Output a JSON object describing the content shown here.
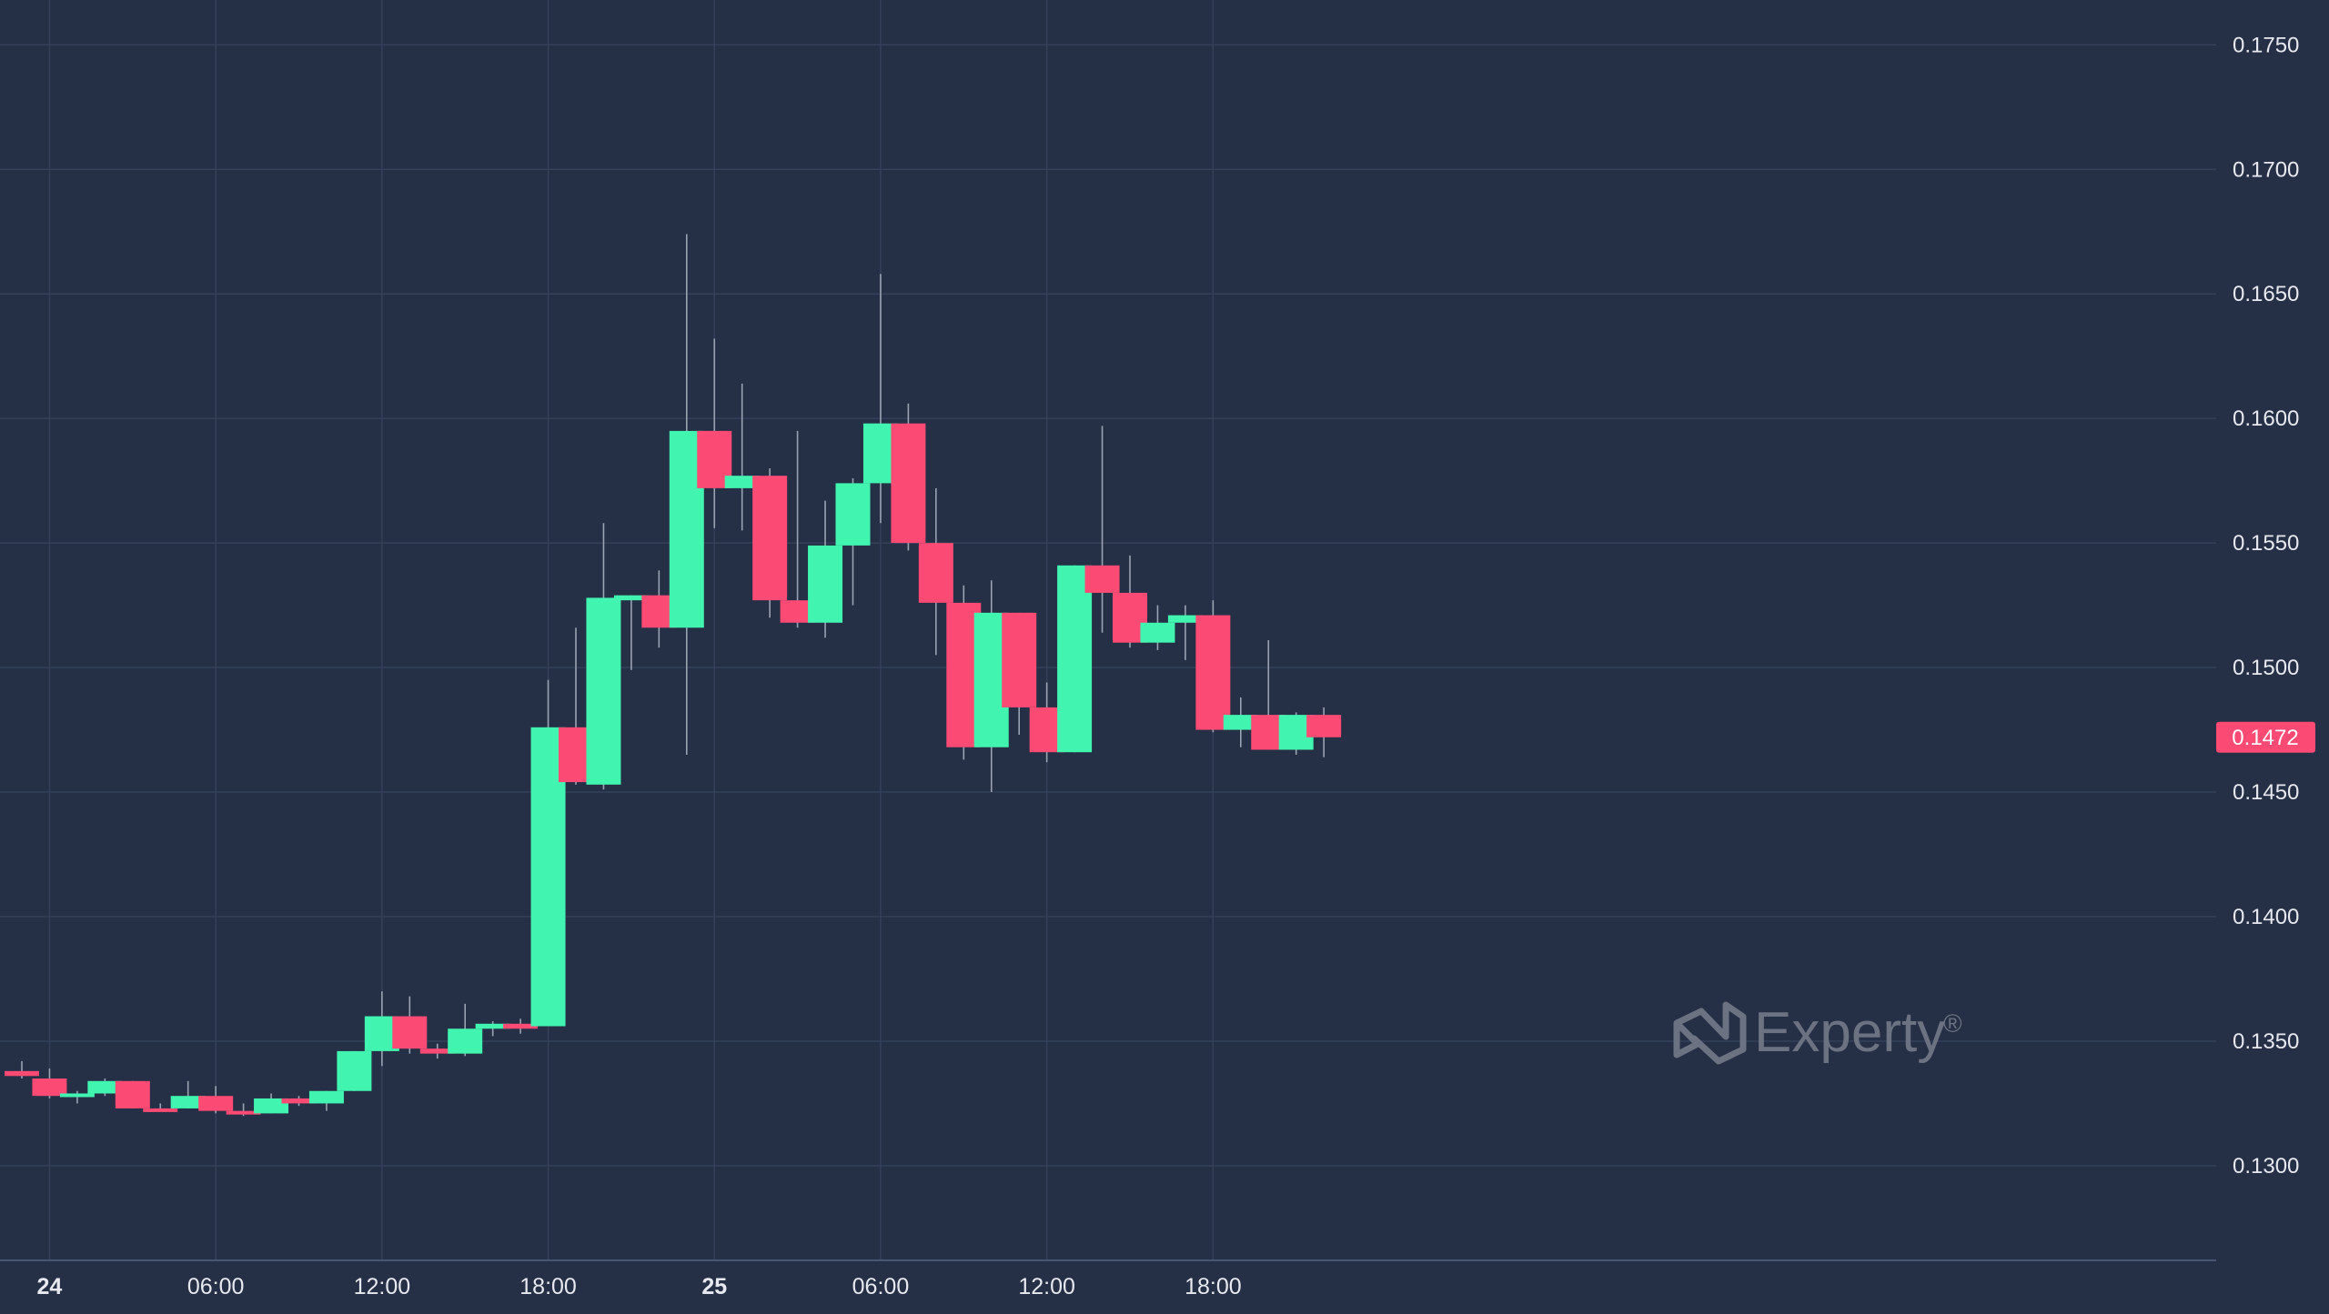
{
  "colors": {
    "background": "#252f45",
    "grid": "#35405a",
    "axis_text": "#e6e9ef",
    "up": "#41f5b0",
    "down": "#fb4a74",
    "wick": "#9aa3b3",
    "price_tag_bg": "#fb4a74",
    "price_tag_text": "#ffffff",
    "watermark": "#6b7383"
  },
  "watermark": {
    "brand": "Experty",
    "registered_mark": "®",
    "icon": "experty-logo-icon"
  },
  "chart_data": {
    "type": "candlestick",
    "title": "",
    "xlabel": "",
    "ylabel": "",
    "ylim": [
      0.1262,
      0.1768
    ],
    "interval_hours": 1,
    "grid": true,
    "y_ticks": [
      "0.1750",
      "0.1700",
      "0.1650",
      "0.1600",
      "0.1550",
      "0.1500",
      "0.1450",
      "0.1400",
      "0.1350",
      "0.1300"
    ],
    "x_ticks": [
      {
        "t": 1,
        "label": "24",
        "bold": true
      },
      {
        "t": 7,
        "label": "06:00",
        "bold": false
      },
      {
        "t": 13,
        "label": "12:00",
        "bold": false
      },
      {
        "t": 19,
        "label": "18:00",
        "bold": false
      },
      {
        "t": 25,
        "label": "25",
        "bold": true
      },
      {
        "t": 31,
        "label": "06:00",
        "bold": false
      },
      {
        "t": 37,
        "label": "12:00",
        "bold": false
      },
      {
        "t": 43,
        "label": "18:00",
        "bold": false
      }
    ],
    "last_price": "0.1472",
    "candles": [
      {
        "t": 0,
        "o": 0.1338,
        "h": 0.1342,
        "l": 0.1335,
        "c": 0.1336
      },
      {
        "t": 1,
        "o": 0.1335,
        "h": 0.1339,
        "l": 0.1327,
        "c": 0.1328
      },
      {
        "t": 2,
        "o": 0.1328,
        "h": 0.133,
        "l": 0.1325,
        "c": 0.1329
      },
      {
        "t": 3,
        "o": 0.1329,
        "h": 0.1335,
        "l": 0.1328,
        "c": 0.1334
      },
      {
        "t": 4,
        "o": 0.1334,
        "h": 0.1334,
        "l": 0.1323,
        "c": 0.1323
      },
      {
        "t": 5,
        "o": 0.1323,
        "h": 0.1325,
        "l": 0.1322,
        "c": 0.1322
      },
      {
        "t": 6,
        "o": 0.1323,
        "h": 0.1334,
        "l": 0.1323,
        "c": 0.1328
      },
      {
        "t": 7,
        "o": 0.1328,
        "h": 0.1332,
        "l": 0.1321,
        "c": 0.1322
      },
      {
        "t": 8,
        "o": 0.1322,
        "h": 0.1325,
        "l": 0.132,
        "c": 0.1321
      },
      {
        "t": 9,
        "o": 0.1321,
        "h": 0.1329,
        "l": 0.1321,
        "c": 0.1327
      },
      {
        "t": 10,
        "o": 0.1327,
        "h": 0.1328,
        "l": 0.1324,
        "c": 0.1325
      },
      {
        "t": 11,
        "o": 0.1325,
        "h": 0.133,
        "l": 0.1322,
        "c": 0.133
      },
      {
        "t": 12,
        "o": 0.133,
        "h": 0.1346,
        "l": 0.133,
        "c": 0.1346
      },
      {
        "t": 13,
        "o": 0.1346,
        "h": 0.137,
        "l": 0.134,
        "c": 0.136
      },
      {
        "t": 14,
        "o": 0.136,
        "h": 0.1368,
        "l": 0.1345,
        "c": 0.1347
      },
      {
        "t": 15,
        "o": 0.1347,
        "h": 0.1349,
        "l": 0.1343,
        "c": 0.1345
      },
      {
        "t": 16,
        "o": 0.1345,
        "h": 0.1365,
        "l": 0.1344,
        "c": 0.1355
      },
      {
        "t": 17,
        "o": 0.1355,
        "h": 0.1358,
        "l": 0.1352,
        "c": 0.1357
      },
      {
        "t": 18,
        "o": 0.1357,
        "h": 0.1359,
        "l": 0.1353,
        "c": 0.1355
      },
      {
        "t": 19,
        "o": 0.1356,
        "h": 0.1495,
        "l": 0.1356,
        "c": 0.1476
      },
      {
        "t": 20,
        "o": 0.1476,
        "h": 0.1516,
        "l": 0.1453,
        "c": 0.1454
      },
      {
        "t": 21,
        "o": 0.1453,
        "h": 0.1558,
        "l": 0.1451,
        "c": 0.1528
      },
      {
        "t": 22,
        "o": 0.1527,
        "h": 0.1529,
        "l": 0.1499,
        "c": 0.1529
      },
      {
        "t": 23,
        "o": 0.1529,
        "h": 0.1539,
        "l": 0.1508,
        "c": 0.1516
      },
      {
        "t": 24,
        "o": 0.1516,
        "h": 0.1674,
        "l": 0.1465,
        "c": 0.1595
      },
      {
        "t": 25,
        "o": 0.1595,
        "h": 0.1632,
        "l": 0.1556,
        "c": 0.1572
      },
      {
        "t": 26,
        "o": 0.1572,
        "h": 0.1614,
        "l": 0.1555,
        "c": 0.1577
      },
      {
        "t": 27,
        "o": 0.1577,
        "h": 0.158,
        "l": 0.152,
        "c": 0.1527
      },
      {
        "t": 28,
        "o": 0.1527,
        "h": 0.1595,
        "l": 0.1516,
        "c": 0.1518
      },
      {
        "t": 29,
        "o": 0.1518,
        "h": 0.1567,
        "l": 0.1512,
        "c": 0.1549
      },
      {
        "t": 30,
        "o": 0.1549,
        "h": 0.1576,
        "l": 0.1525,
        "c": 0.1574
      },
      {
        "t": 31,
        "o": 0.1574,
        "h": 0.1658,
        "l": 0.1558,
        "c": 0.1598
      },
      {
        "t": 32,
        "o": 0.1598,
        "h": 0.1606,
        "l": 0.1547,
        "c": 0.155
      },
      {
        "t": 33,
        "o": 0.155,
        "h": 0.1572,
        "l": 0.1505,
        "c": 0.1526
      },
      {
        "t": 34,
        "o": 0.1526,
        "h": 0.1533,
        "l": 0.1463,
        "c": 0.1468
      },
      {
        "t": 35,
        "o": 0.1468,
        "h": 0.1535,
        "l": 0.145,
        "c": 0.1522
      },
      {
        "t": 36,
        "o": 0.1522,
        "h": 0.1522,
        "l": 0.1473,
        "c": 0.1484
      },
      {
        "t": 37,
        "o": 0.1484,
        "h": 0.1494,
        "l": 0.1462,
        "c": 0.1466
      },
      {
        "t": 38,
        "o": 0.1466,
        "h": 0.1541,
        "l": 0.1466,
        "c": 0.1541
      },
      {
        "t": 39,
        "o": 0.1541,
        "h": 0.1597,
        "l": 0.1514,
        "c": 0.153
      },
      {
        "t": 40,
        "o": 0.153,
        "h": 0.1545,
        "l": 0.1508,
        "c": 0.151
      },
      {
        "t": 41,
        "o": 0.151,
        "h": 0.1525,
        "l": 0.1507,
        "c": 0.1518
      },
      {
        "t": 42,
        "o": 0.1518,
        "h": 0.1525,
        "l": 0.1503,
        "c": 0.1521
      },
      {
        "t": 43,
        "o": 0.1521,
        "h": 0.1527,
        "l": 0.1474,
        "c": 0.1475
      },
      {
        "t": 44,
        "o": 0.1475,
        "h": 0.1488,
        "l": 0.1468,
        "c": 0.1481
      },
      {
        "t": 45,
        "o": 0.1481,
        "h": 0.1511,
        "l": 0.1467,
        "c": 0.1467
      },
      {
        "t": 46,
        "o": 0.1467,
        "h": 0.1482,
        "l": 0.1465,
        "c": 0.1481
      },
      {
        "t": 47,
        "o": 0.1481,
        "h": 0.1484,
        "l": 0.1464,
        "c": 0.1472
      }
    ]
  }
}
